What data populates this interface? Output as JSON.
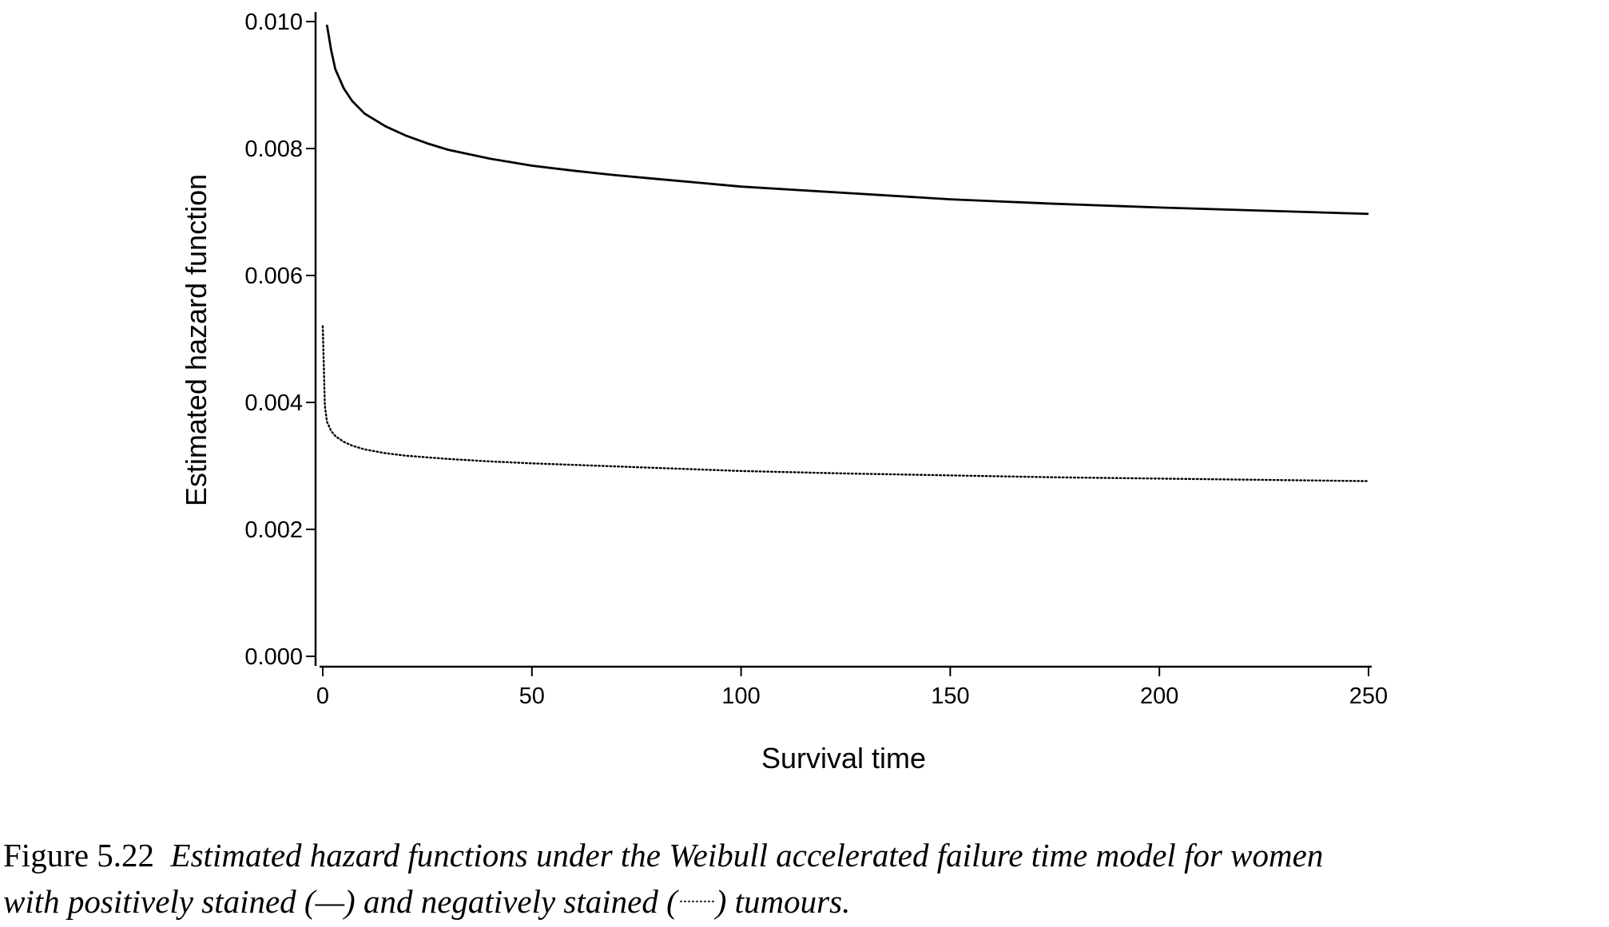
{
  "chart_data": {
    "type": "line",
    "title": "",
    "xlabel": "Survival time",
    "ylabel": "Estimated hazard function",
    "xlim": [
      0,
      250
    ],
    "ylim": [
      0,
      0.01
    ],
    "x_ticks": [
      "0",
      "50",
      "100",
      "150",
      "200",
      "250"
    ],
    "y_ticks": [
      "0.000",
      "0.002",
      "0.004",
      "0.006",
      "0.008",
      "0.010"
    ],
    "grid": false,
    "legend": "none",
    "series": [
      {
        "style": "solid",
        "color": "#000000",
        "x": [
          1,
          2,
          3,
          5,
          7,
          10,
          15,
          20,
          25,
          30,
          40,
          50,
          60,
          70,
          80,
          90,
          100,
          125,
          150,
          175,
          200,
          225,
          250
        ],
        "y": [
          0.00995,
          0.00955,
          0.00925,
          0.00895,
          0.00875,
          0.00855,
          0.00835,
          0.0082,
          0.00808,
          0.00798,
          0.00784,
          0.00773,
          0.00765,
          0.00758,
          0.00752,
          0.00746,
          0.0074,
          0.0073,
          0.0072,
          0.00713,
          0.00707,
          0.00702,
          0.00697
        ]
      },
      {
        "style": "dotted",
        "color": "#000000",
        "x": [
          0,
          0.5,
          1,
          2,
          3,
          5,
          7,
          10,
          15,
          20,
          30,
          40,
          50,
          75,
          100,
          125,
          150,
          175,
          200,
          225,
          250
        ],
        "y": [
          0.0052,
          0.00395,
          0.0037,
          0.00355,
          0.00347,
          0.00338,
          0.00332,
          0.00326,
          0.0032,
          0.00316,
          0.00311,
          0.00307,
          0.00304,
          0.00298,
          0.00292,
          0.00288,
          0.00285,
          0.00282,
          0.0028,
          0.00278,
          0.00276
        ]
      }
    ]
  },
  "caption": {
    "label": "Figure 5.22",
    "line1_text": "Estimated hazard functions under the Weibull accelerated failure time model for women",
    "line2_pre": "with positively stained (—) and negatively stained (",
    "line2_post": ") tumours."
  }
}
